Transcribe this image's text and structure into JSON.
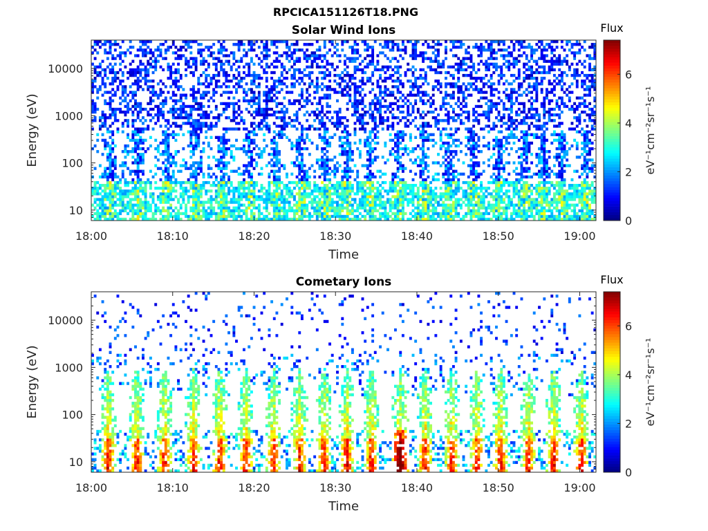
{
  "title": "RPCICA151126T18.PNG",
  "chart_data": [
    {
      "type": "heatmap",
      "title": "Solar Wind Ions",
      "xlabel": "Time",
      "ylabel": "Energy (eV)",
      "x_ticks": [
        "18:00",
        "18:10",
        "18:20",
        "18:30",
        "18:40",
        "18:50",
        "19:00"
      ],
      "x_range": [
        "18:00",
        "19:02"
      ],
      "y_scale": "log",
      "y_ticks": [
        "10",
        "100",
        "1000",
        "10000"
      ],
      "y_range": [
        6,
        40000
      ],
      "colorbar": {
        "label": "Flux",
        "unit": "eV⁻¹cm⁻²sr⁻¹s⁻¹",
        "ticks": [
          "0",
          "2",
          "4",
          "6"
        ],
        "range": [
          0,
          7.4
        ],
        "colormap": "jet"
      },
      "burst_centers_min": [
        2.3,
        5.8,
        9.2,
        12.8,
        16.2,
        19.5,
        22.7,
        25.8,
        28.7,
        31.3,
        34.2,
        37.7,
        40.8,
        44.0,
        47.1,
        50.1,
        53.3,
        55.5,
        57.8,
        60.8
      ],
      "pattern": "Sparse low-flux (blue) counts at 500–30000 eV; periodic vertical bursts of moderate flux (blue–cyan) from 10 to ~500 eV; green/yellow (flux 3–5) at 6–40 eV."
    },
    {
      "type": "heatmap",
      "title": "Cometary Ions",
      "xlabel": "Time",
      "ylabel": "Energy (eV)",
      "x_ticks": [
        "18:00",
        "18:10",
        "18:20",
        "18:30",
        "18:40",
        "18:50",
        "19:00"
      ],
      "x_range": [
        "18:00",
        "19:02"
      ],
      "y_scale": "log",
      "y_ticks": [
        "10",
        "100",
        "1000",
        "10000"
      ],
      "y_range": [
        6,
        40000
      ],
      "colorbar": {
        "label": "Flux",
        "unit": "eV⁻¹cm⁻²sr⁻¹s⁻¹",
        "ticks": [
          "0",
          "2",
          "4",
          "6"
        ],
        "range": [
          0,
          7.4
        ],
        "colormap": "jet"
      },
      "burst_centers_min": [
        2.1,
        5.6,
        9.0,
        12.6,
        15.8,
        19.0,
        22.4,
        25.6,
        28.6,
        31.4,
        34.4,
        38.0,
        41.0,
        44.3,
        47.4,
        50.3,
        53.7,
        56.8,
        60.2
      ],
      "pattern": "Periodic vertical bursts reaching ~1000 eV: yellow-green (flux 4–5) at 30–300 eV, orange-red (flux 6–7) below 30 eV; strongest near 18:38; sparse blue counts above 2000 eV."
    }
  ]
}
